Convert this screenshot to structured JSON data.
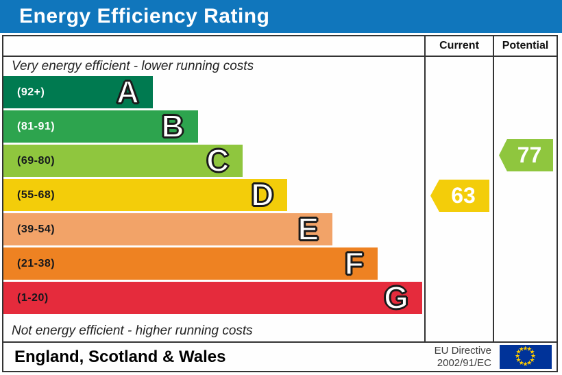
{
  "title": "Energy Efficiency Rating",
  "columns": {
    "current": "Current",
    "potential": "Potential"
  },
  "colors": {
    "header_bg": "#1076bc",
    "border": "#333333",
    "note_text": "#222222"
  },
  "chart_data": {
    "type": "bar",
    "title": "Energy Efficiency Rating",
    "top_note": "Very energy efficient - lower running costs",
    "bottom_note": "Not energy efficient - higher running costs",
    "bands": [
      {
        "letter": "A",
        "label": "(92+)",
        "min": 92,
        "max": 100,
        "color": "#007a50",
        "width_pct": 35.5,
        "label_color": "#ffffff"
      },
      {
        "letter": "B",
        "label": "(81-91)",
        "min": 81,
        "max": 91,
        "color": "#2da44e",
        "width_pct": 46.2,
        "label_color": "#ffffff"
      },
      {
        "letter": "C",
        "label": "(69-80)",
        "min": 69,
        "max": 80,
        "color": "#8fc63e",
        "width_pct": 56.9,
        "label_color": "#14171c"
      },
      {
        "letter": "D",
        "label": "(55-68)",
        "min": 55,
        "max": 68,
        "color": "#f3cd0a",
        "width_pct": 67.5,
        "label_color": "#14171c"
      },
      {
        "letter": "E",
        "label": "(39-54)",
        "min": 39,
        "max": 54,
        "color": "#f2a368",
        "width_pct": 78.2,
        "label_color": "#14171c"
      },
      {
        "letter": "F",
        "label": "(21-38)",
        "min": 21,
        "max": 38,
        "color": "#ee8222",
        "width_pct": 88.9,
        "label_color": "#14171c"
      },
      {
        "letter": "G",
        "label": "(1-20)",
        "min": 1,
        "max": 20,
        "color": "#e52b3c",
        "width_pct": 99.5,
        "label_color": "#14171c"
      }
    ],
    "ratings": {
      "current": {
        "value": 63,
        "band": "D",
        "color": "#f3cd0a"
      },
      "potential": {
        "value": 77,
        "band": "C",
        "color": "#8fc63e"
      }
    }
  },
  "footer": {
    "region": "England, Scotland & Wales",
    "directive_line1": "EU Directive",
    "directive_line2": "2002/91/EC",
    "eu_flag": {
      "background": "#003399",
      "star_color": "#ffcc00",
      "star_count": 12
    }
  }
}
